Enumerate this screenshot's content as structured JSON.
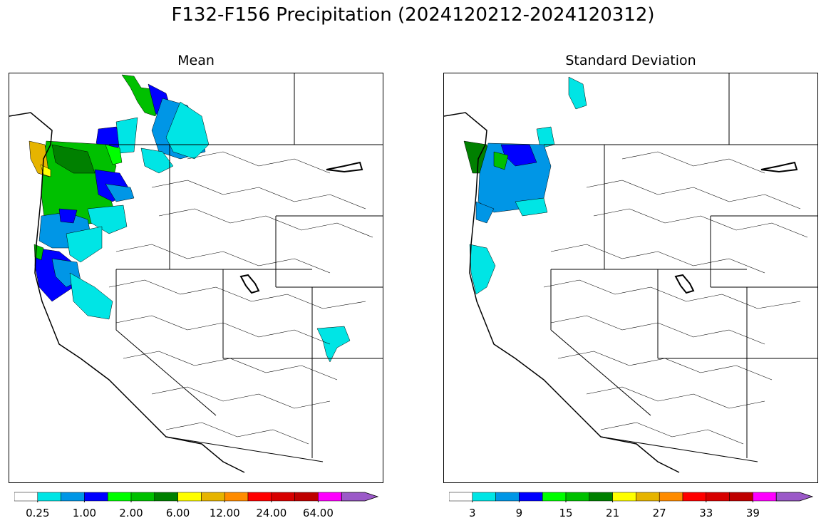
{
  "figure": {
    "title": "F132-F156 Precipitation (2024120212-2024120312)"
  },
  "panels": [
    {
      "id": "mean",
      "title": "Mean",
      "colorbar": {
        "tick_labels": [
          "0.25",
          "1.00",
          "2.00",
          "6.00",
          "12.00",
          "24.00",
          "64.00"
        ],
        "colors": [
          "#ffffff",
          "#00e5e5",
          "#0096e6",
          "#0000ff",
          "#00ff00",
          "#00c000",
          "#008000",
          "#ffff00",
          "#e6b400",
          "#ff8c00",
          "#ff0000",
          "#d70000",
          "#be0000",
          "#ff00ff",
          "#9b59c8"
        ],
        "extend": "max"
      }
    },
    {
      "id": "stddev",
      "title": "Standard Deviation",
      "colorbar": {
        "tick_labels": [
          "3",
          "9",
          "15",
          "21",
          "27",
          "33",
          "39"
        ],
        "colors": [
          "#ffffff",
          "#00e5e5",
          "#0096e6",
          "#0000ff",
          "#00ff00",
          "#00c000",
          "#008000",
          "#ffff00",
          "#e6b400",
          "#ff8c00",
          "#ff0000",
          "#d70000",
          "#be0000",
          "#ff00ff",
          "#9b59c8"
        ],
        "extend": "max"
      }
    }
  ]
}
